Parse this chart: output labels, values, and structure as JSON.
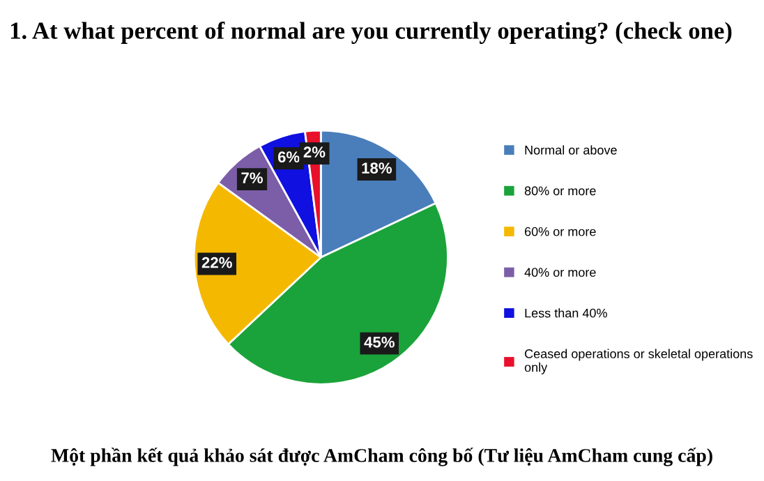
{
  "chart_data": {
    "type": "pie",
    "title": "1. At what percent of normal are you currently operating? (check one)",
    "categories": [
      "Normal or above",
      "80% or more",
      "60% or more",
      "40% or more",
      "Less than 40%",
      "Ceased operations or skeletal operations only"
    ],
    "values": [
      18,
      45,
      22,
      7,
      6,
      2
    ],
    "colors": [
      "#4a7ebb",
      "#1aa33a",
      "#f5b800",
      "#7b5ea7",
      "#1010e0",
      "#e8102a"
    ],
    "value_labels": [
      "18%",
      "45%",
      "22%",
      "7%",
      "6%",
      "2%"
    ],
    "legend": "right",
    "annotations": [
      "Một phần kết quả khảo sát được AmCham công bố (Tư liệu AmCham cung cấp)"
    ]
  }
}
